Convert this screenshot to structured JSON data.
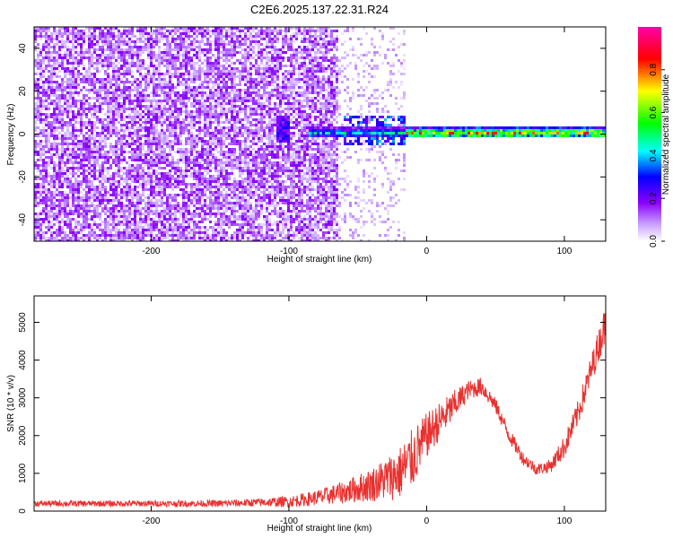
{
  "page": {
    "title": "C2E6.2025.137.22.31.R24"
  },
  "chart_data": [
    {
      "type": "heatmap",
      "xlabel": "Height of straight line (km)",
      "ylabel": "Frequency (Hz)",
      "xlim": [
        -285,
        130
      ],
      "ylim": [
        -50,
        50
      ],
      "xticks": [
        -200,
        -100,
        0,
        100
      ],
      "yticks": [
        -40,
        -20,
        0,
        20,
        40
      ],
      "colorbar": {
        "label": "Normalized spectral amplitude",
        "range": [
          0.0,
          1.0
        ],
        "ticks": [
          "0.0",
          "0.2",
          "0.4",
          "0.6",
          "0.8"
        ],
        "tick_values": [
          0.0,
          0.2,
          0.4,
          0.6,
          0.8
        ],
        "colors": [
          "#ffffff",
          "#8b00ff",
          "#0000ff",
          "#00ffff",
          "#00ff00",
          "#ffff00",
          "#ff0000",
          "#ff00aa"
        ]
      },
      "features": [
        {
          "region": "noise",
          "x": [
            -285,
            -65
          ],
          "freq": [
            -50,
            50
          ],
          "amplitude": 0.12
        },
        {
          "region": "sparse-noise",
          "x": [
            -65,
            -15
          ],
          "freq": [
            -50,
            50
          ],
          "amplitude": 0.05
        },
        {
          "region": "signal-onset",
          "x": [
            -110,
            -100
          ],
          "freq": [
            -4,
            8
          ],
          "amplitude": 0.25
        },
        {
          "region": "signal-band",
          "x": [
            -85,
            130
          ],
          "freq": [
            -2,
            3
          ],
          "amplitude": 0.9
        }
      ]
    },
    {
      "type": "line",
      "xlabel": "Height of straight line (km)",
      "ylabel": "SNR (10 * v/v)",
      "xlim": [
        -285,
        130
      ],
      "ylim": [
        0,
        5700
      ],
      "xticks": [
        -200,
        -100,
        0,
        100
      ],
      "yticks": [
        0,
        1000,
        2000,
        3000,
        4000,
        5000
      ],
      "color": "#e8312f",
      "x": [
        -285,
        -250,
        -200,
        -150,
        -120,
        -100,
        -80,
        -60,
        -40,
        -20,
        -10,
        0,
        10,
        20,
        30,
        40,
        50,
        60,
        70,
        80,
        90,
        100,
        110,
        120,
        130
      ],
      "y": [
        200,
        200,
        200,
        200,
        230,
        250,
        350,
        500,
        700,
        1000,
        1400,
        2000,
        2400,
        2800,
        3200,
        3300,
        2800,
        2000,
        1400,
        1100,
        1200,
        1700,
        2600,
        3800,
        5000
      ],
      "noise_amplitude": [
        80,
        80,
        80,
        90,
        110,
        150,
        200,
        300,
        450,
        700,
        800,
        600,
        500,
        400,
        250,
        250,
        200,
        200,
        180,
        150,
        180,
        300,
        350,
        400,
        500
      ]
    }
  ]
}
